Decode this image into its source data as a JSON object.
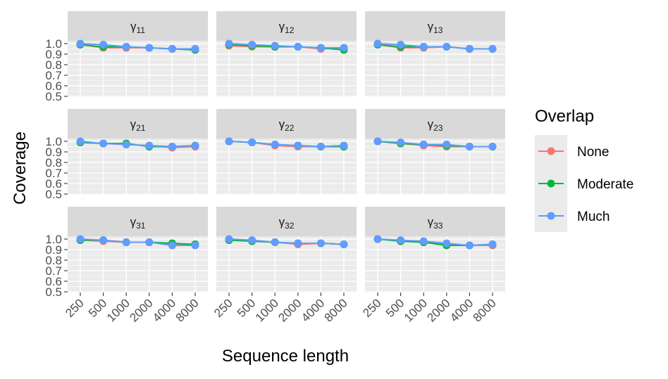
{
  "chart_data": {
    "type": "line",
    "facets": [
      "γ11",
      "γ12",
      "γ13",
      "γ21",
      "γ22",
      "γ23",
      "γ31",
      "γ32",
      "γ33"
    ],
    "facet_labels": [
      {
        "symbol": "γ",
        "sub": "11"
      },
      {
        "symbol": "γ",
        "sub": "12"
      },
      {
        "symbol": "γ",
        "sub": "13"
      },
      {
        "symbol": "γ",
        "sub": "21"
      },
      {
        "symbol": "γ",
        "sub": "22"
      },
      {
        "symbol": "γ",
        "sub": "23"
      },
      {
        "symbol": "γ",
        "sub": "31"
      },
      {
        "symbol": "γ",
        "sub": "32"
      },
      {
        "symbol": "γ",
        "sub": "33"
      }
    ],
    "categories": [
      "250",
      "500",
      "1000",
      "2000",
      "4000",
      "8000"
    ],
    "xlabel": "Sequence length",
    "ylabel": "Coverage",
    "ylim": [
      0.5,
      1.0
    ],
    "yticks": [
      "0.5",
      "0.6",
      "0.7",
      "0.8",
      "0.9",
      "1.0"
    ],
    "legend": {
      "title": "Overlap",
      "position": "right"
    },
    "series": [
      {
        "name": "None",
        "color": "#F8766D",
        "values": [
          [
            0.99,
            0.96,
            0.96,
            0.96,
            0.95,
            0.95
          ],
          [
            0.98,
            0.97,
            0.97,
            0.97,
            0.95,
            0.96
          ],
          [
            0.99,
            0.96,
            0.96,
            0.97,
            0.95,
            0.95
          ],
          [
            0.99,
            0.98,
            0.97,
            0.96,
            0.94,
            0.95
          ],
          [
            1.0,
            0.99,
            0.96,
            0.95,
            0.95,
            0.96
          ],
          [
            1.0,
            0.98,
            0.96,
            0.95,
            0.95,
            0.95
          ],
          [
            0.99,
            0.98,
            0.97,
            0.97,
            0.95,
            0.95
          ],
          [
            0.99,
            0.98,
            0.97,
            0.95,
            0.96,
            0.95
          ],
          [
            1.0,
            0.98,
            0.97,
            0.95,
            0.94,
            0.94
          ]
        ]
      },
      {
        "name": "Moderate",
        "color": "#00BA38",
        "values": [
          [
            0.99,
            0.97,
            0.97,
            0.96,
            0.95,
            0.94
          ],
          [
            0.99,
            0.98,
            0.97,
            0.97,
            0.96,
            0.94
          ],
          [
            0.99,
            0.97,
            0.97,
            0.97,
            0.95,
            0.95
          ],
          [
            0.99,
            0.98,
            0.98,
            0.95,
            0.95,
            0.96
          ],
          [
            1.0,
            0.99,
            0.97,
            0.96,
            0.95,
            0.95
          ],
          [
            1.0,
            0.98,
            0.97,
            0.96,
            0.95,
            0.95
          ],
          [
            0.99,
            0.99,
            0.97,
            0.97,
            0.96,
            0.95
          ],
          [
            0.99,
            0.98,
            0.97,
            0.96,
            0.96,
            0.95
          ],
          [
            1.0,
            0.98,
            0.97,
            0.94,
            0.94,
            0.95
          ]
        ]
      },
      {
        "name": "Much",
        "color": "#619CFF",
        "values": [
          [
            1.0,
            0.99,
            0.97,
            0.96,
            0.95,
            0.95
          ],
          [
            1.0,
            0.99,
            0.98,
            0.97,
            0.96,
            0.96
          ],
          [
            1.0,
            0.99,
            0.97,
            0.97,
            0.95,
            0.95
          ],
          [
            1.0,
            0.98,
            0.97,
            0.96,
            0.95,
            0.96
          ],
          [
            1.0,
            0.99,
            0.97,
            0.96,
            0.95,
            0.96
          ],
          [
            1.0,
            0.99,
            0.97,
            0.97,
            0.95,
            0.95
          ],
          [
            1.0,
            0.99,
            0.97,
            0.97,
            0.94,
            0.94
          ],
          [
            1.0,
            0.99,
            0.97,
            0.96,
            0.96,
            0.95
          ],
          [
            1.0,
            0.99,
            0.98,
            0.96,
            0.94,
            0.95
          ]
        ]
      }
    ]
  }
}
